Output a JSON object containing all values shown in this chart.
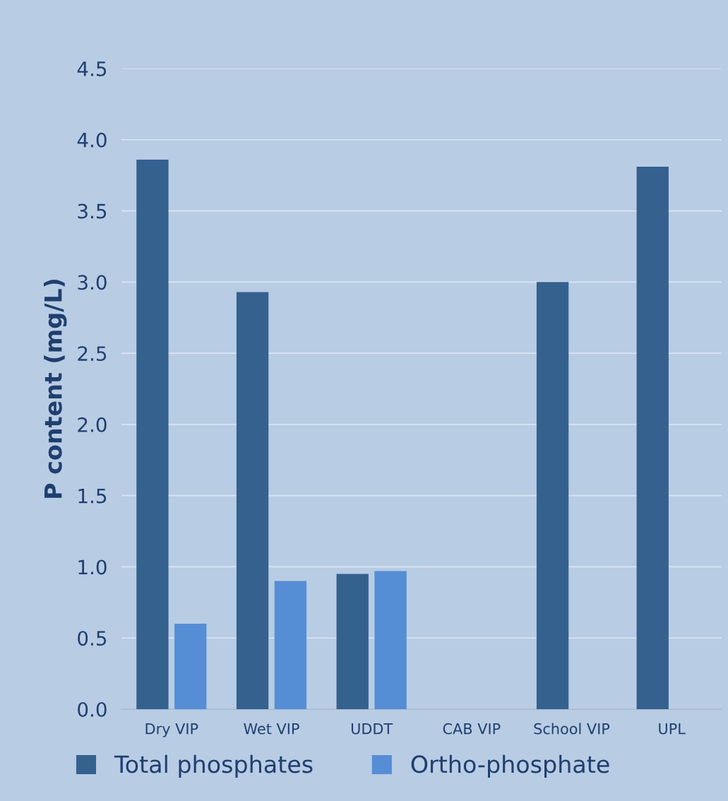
{
  "chart_data": {
    "type": "bar",
    "ylabel": "P content (mg/L)",
    "categories": [
      "Dry VIP",
      "Wet VIP",
      "UDDT",
      "CAB VIP",
      "School VIP",
      "UPL"
    ],
    "series": [
      {
        "name": "Total phosphates",
        "color": "#35618f",
        "values": [
          3.86,
          2.93,
          0.95,
          null,
          3.0,
          3.81
        ]
      },
      {
        "name": "Ortho-phosphate",
        "color": "#558ed5",
        "values": [
          0.6,
          0.9,
          0.97,
          null,
          null,
          null
        ]
      }
    ],
    "ylim": [
      0,
      4.5
    ],
    "yticks": [
      {
        "value": 0,
        "label": "0.0"
      },
      0.5,
      {
        "value": 1,
        "label": "1.0"
      },
      1.5,
      {
        "value": 2,
        "label": "2.0"
      },
      2.5,
      {
        "value": 3,
        "label": "3.0"
      },
      3.5,
      {
        "value": 4,
        "label": "4.0"
      },
      4.5
    ],
    "grid": "y",
    "legend": "bottom"
  }
}
